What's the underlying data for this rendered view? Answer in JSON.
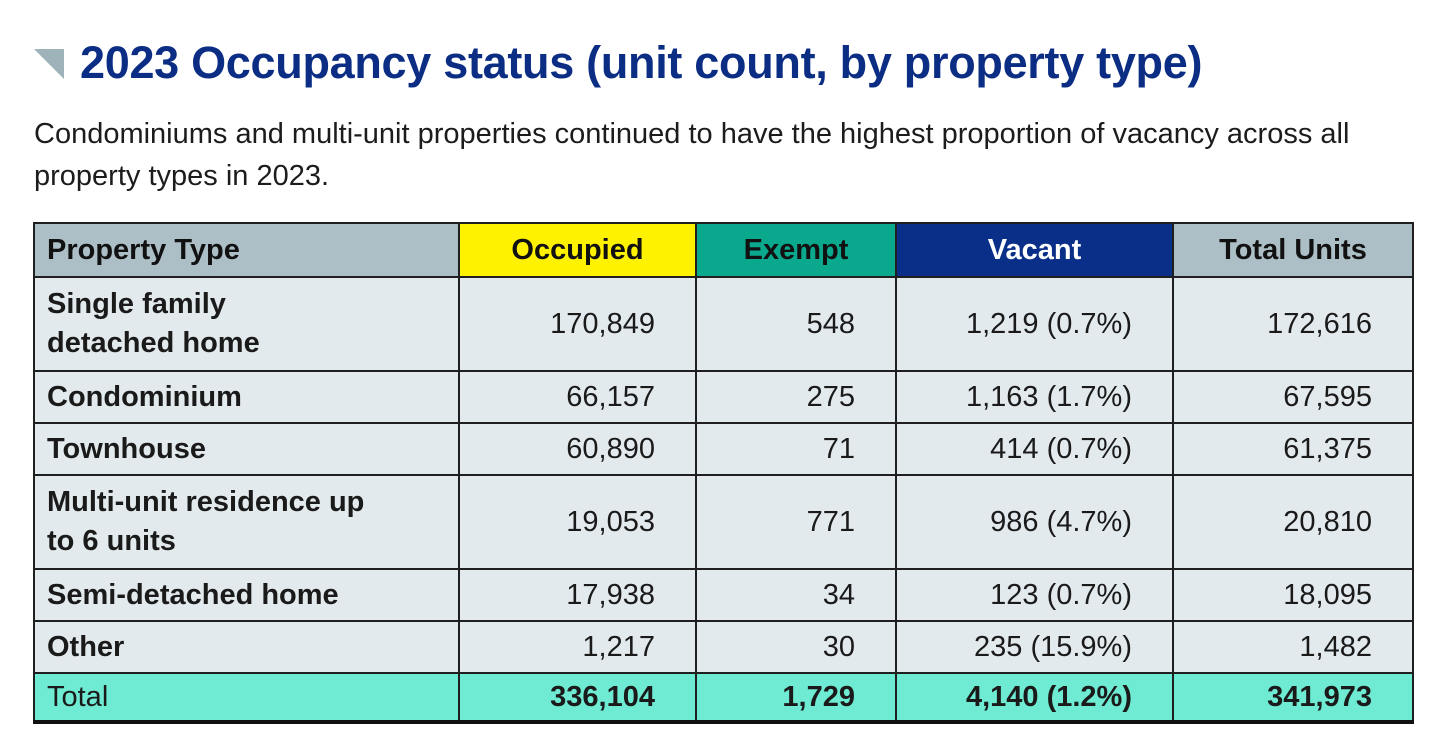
{
  "header": {
    "title": "2023 Occupancy status (unit count, by property type)",
    "subtitle": "Condominiums and multi-unit properties continued to have the highest proportion of vacancy across all property types in 2023.",
    "icon": "corner-triangle-icon",
    "accent_color": "#0b2e84"
  },
  "table": {
    "columns": [
      "Property Type",
      "Occupied",
      "Exempt",
      "Vacant",
      "Total Units"
    ],
    "header_colors": {
      "property_type": "#adbfc6",
      "occupied": "#fff200",
      "exempt": "#0aa98e",
      "vacant": "#0a2f88",
      "total_units": "#adbfc6"
    },
    "rows": [
      {
        "type": "Single family detached home",
        "occupied": "170,849",
        "exempt": "548",
        "vacant": "1,219 (0.7%)",
        "total": "172,616"
      },
      {
        "type": "Condominium",
        "occupied": "66,157",
        "exempt": "275",
        "vacant": "1,163 (1.7%)",
        "total": "67,595"
      },
      {
        "type": "Townhouse",
        "occupied": "60,890",
        "exempt": "71",
        "vacant": "414 (0.7%)",
        "total": "61,375"
      },
      {
        "type": "Multi-unit residence up to 6 units",
        "occupied": "19,053",
        "exempt": "771",
        "vacant": "986 (4.7%)",
        "total": "20,810"
      },
      {
        "type": "Semi-detached home",
        "occupied": "17,938",
        "exempt": "34",
        "vacant": "123 (0.7%)",
        "total": "18,095"
      },
      {
        "type": "Other",
        "occupied": "1,217",
        "exempt": "30",
        "vacant": "235 (15.9%)",
        "total": "1,482"
      }
    ],
    "total": {
      "label": "Total",
      "occupied": "336,104",
      "exempt": "1,729",
      "vacant": "4,140 (1.2%)",
      "total": "341,973"
    },
    "total_row_color": "#6eebd2"
  }
}
